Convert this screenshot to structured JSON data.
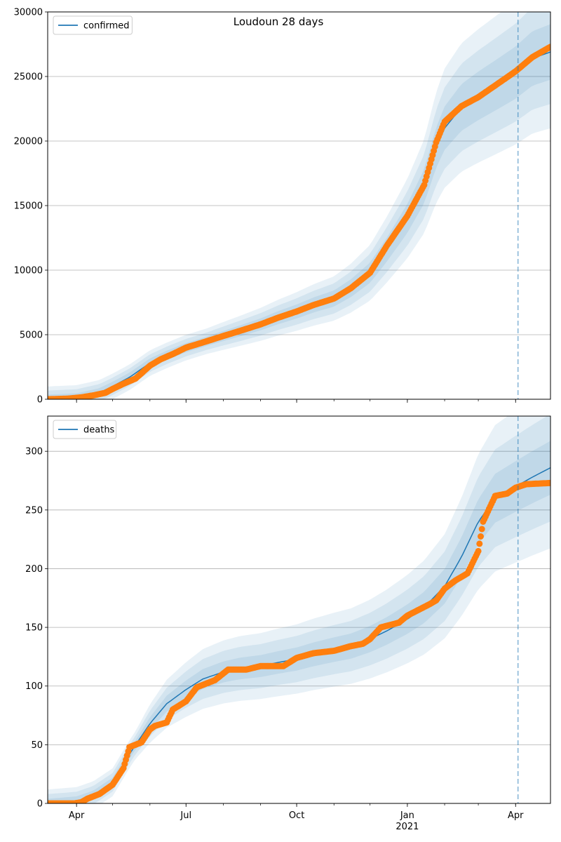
{
  "figure": {
    "title": "Loudoun 28 days"
  },
  "chart_data": [
    {
      "type": "line",
      "legend": {
        "entries": [
          "confirmed"
        ],
        "placement": "top-left"
      },
      "grid": "y-major",
      "x_axis": {
        "type": "date",
        "range": [
          "2020-03-08",
          "2021-04-30"
        ],
        "ticks": [
          {
            "date": "2020-04-01",
            "label": "Apr"
          },
          {
            "date": "2020-07-01",
            "label": "Jul"
          },
          {
            "date": "2020-10-01",
            "label": "Oct"
          },
          {
            "date": "2021-01-01",
            "label": "Jan",
            "sublabel": "2021"
          },
          {
            "date": "2021-04-01",
            "label": "Apr"
          }
        ]
      },
      "y_axis": {
        "range": [
          0,
          30000
        ],
        "ticks": [
          0,
          5000,
          10000,
          15000,
          20000,
          25000,
          30000
        ]
      },
      "forecast_start": "2021-04-03",
      "series": [
        {
          "name": "confirmed",
          "role": "model",
          "color": "#1f77b4",
          "points": [
            [
              "2020-03-08",
              0
            ],
            [
              "2020-04-01",
              100
            ],
            [
              "2020-04-20",
              500
            ],
            [
              "2020-05-01",
              1000
            ],
            [
              "2020-05-15",
              1700
            ],
            [
              "2020-06-01",
              2800
            ],
            [
              "2020-06-15",
              3400
            ],
            [
              "2020-07-01",
              4000
            ],
            [
              "2020-07-15",
              4400
            ],
            [
              "2020-08-01",
              4900
            ],
            [
              "2020-08-15",
              5300
            ],
            [
              "2020-09-01",
              5800
            ],
            [
              "2020-09-15",
              6300
            ],
            [
              "2020-10-01",
              6800
            ],
            [
              "2020-10-15",
              7300
            ],
            [
              "2020-11-01",
              7800
            ],
            [
              "2020-11-15",
              8600
            ],
            [
              "2020-12-01",
              9800
            ],
            [
              "2020-12-15",
              11600
            ],
            [
              "2021-01-01",
              14000
            ],
            [
              "2021-01-15",
              16500
            ],
            [
              "2021-01-25",
              19500
            ],
            [
              "2021-02-01",
              21000
            ],
            [
              "2021-02-15",
              22600
            ],
            [
              "2021-03-01",
              23500
            ],
            [
              "2021-03-15",
              24300
            ],
            [
              "2021-04-01",
              25300
            ],
            [
              "2021-04-15",
              26400
            ],
            [
              "2021-04-30",
              26900
            ]
          ],
          "band_widths": [
            0.08,
            0.15,
            0.22
          ]
        },
        {
          "name": "confirmed observed",
          "role": "observed",
          "color": "#ff7f0e",
          "points": [
            [
              "2020-03-08",
              0
            ],
            [
              "2020-03-25",
              50
            ],
            [
              "2020-04-05",
              150
            ],
            [
              "2020-04-15",
              300
            ],
            [
              "2020-04-25",
              500
            ],
            [
              "2020-05-01",
              800
            ],
            [
              "2020-05-10",
              1200
            ],
            [
              "2020-05-20",
              1600
            ],
            [
              "2020-06-01",
              2600
            ],
            [
              "2020-06-10",
              3100
            ],
            [
              "2020-06-20",
              3500
            ],
            [
              "2020-07-01",
              4000
            ],
            [
              "2020-07-15",
              4400
            ],
            [
              "2020-08-01",
              4900
            ],
            [
              "2020-08-15",
              5300
            ],
            [
              "2020-09-01",
              5800
            ],
            [
              "2020-09-15",
              6300
            ],
            [
              "2020-10-01",
              6800
            ],
            [
              "2020-10-15",
              7300
            ],
            [
              "2020-11-01",
              7800
            ],
            [
              "2020-11-15",
              8600
            ],
            [
              "2020-12-01",
              9800
            ],
            [
              "2020-12-15",
              11900
            ],
            [
              "2021-01-01",
              14200
            ],
            [
              "2021-01-15",
              16600
            ],
            [
              "2021-01-25",
              19900
            ],
            [
              "2021-02-01",
              21500
            ],
            [
              "2021-02-15",
              22700
            ],
            [
              "2021-03-01",
              23400
            ],
            [
              "2021-03-15",
              24300
            ],
            [
              "2021-04-01",
              25400
            ],
            [
              "2021-04-15",
              26500
            ],
            [
              "2021-04-30",
              27300
            ]
          ]
        }
      ]
    },
    {
      "type": "line",
      "legend": {
        "entries": [
          "deaths"
        ],
        "placement": "top-left"
      },
      "grid": "y-major",
      "x_axis": {
        "type": "date",
        "range": [
          "2020-03-08",
          "2021-04-30"
        ],
        "ticks": [
          {
            "date": "2020-04-01",
            "label": "Apr"
          },
          {
            "date": "2020-07-01",
            "label": "Jul"
          },
          {
            "date": "2020-10-01",
            "label": "Oct"
          },
          {
            "date": "2021-01-01",
            "label": "Jan",
            "sublabel": "2021"
          },
          {
            "date": "2021-04-01",
            "label": "Apr"
          }
        ]
      },
      "y_axis": {
        "range": [
          0,
          330
        ],
        "ticks": [
          0,
          50,
          100,
          150,
          200,
          250,
          300
        ]
      },
      "forecast_start": "2021-04-03",
      "series": [
        {
          "name": "deaths",
          "role": "model",
          "color": "#1f77b4",
          "points": [
            [
              "2020-03-08",
              0
            ],
            [
              "2020-04-01",
              2
            ],
            [
              "2020-04-15",
              7
            ],
            [
              "2020-05-01",
              18
            ],
            [
              "2020-05-15",
              42
            ],
            [
              "2020-06-01",
              68
            ],
            [
              "2020-06-15",
              85
            ],
            [
              "2020-07-01",
              97
            ],
            [
              "2020-07-15",
              106
            ],
            [
              "2020-08-01",
              112
            ],
            [
              "2020-08-15",
              115
            ],
            [
              "2020-09-01",
              117
            ],
            [
              "2020-09-15",
              120
            ],
            [
              "2020-10-01",
              123
            ],
            [
              "2020-10-15",
              127
            ],
            [
              "2020-11-01",
              131
            ],
            [
              "2020-11-15",
              134
            ],
            [
              "2020-12-01",
              140
            ],
            [
              "2020-12-15",
              147
            ],
            [
              "2021-01-01",
              157
            ],
            [
              "2021-01-15",
              167
            ],
            [
              "2021-02-01",
              185
            ],
            [
              "2021-02-15",
              210
            ],
            [
              "2021-03-01",
              240
            ],
            [
              "2021-03-15",
              260
            ],
            [
              "2021-04-01",
              270
            ],
            [
              "2021-04-15",
              278
            ],
            [
              "2021-04-30",
              286
            ]
          ],
          "band_widths": [
            0.08,
            0.16,
            0.24
          ]
        },
        {
          "name": "deaths observed",
          "role": "observed",
          "color": "#ff7f0e",
          "points": [
            [
              "2020-03-08",
              0
            ],
            [
              "2020-03-30",
              0
            ],
            [
              "2020-04-05",
              1
            ],
            [
              "2020-04-10",
              4
            ],
            [
              "2020-04-20",
              8
            ],
            [
              "2020-05-01",
              16
            ],
            [
              "2020-05-10",
              30
            ],
            [
              "2020-05-15",
              48
            ],
            [
              "2020-05-25",
              52
            ],
            [
              "2020-06-01",
              63
            ],
            [
              "2020-06-05",
              66
            ],
            [
              "2020-06-15",
              69
            ],
            [
              "2020-06-20",
              80
            ],
            [
              "2020-07-01",
              87
            ],
            [
              "2020-07-10",
              99
            ],
            [
              "2020-07-25",
              105
            ],
            [
              "2020-08-05",
              114
            ],
            [
              "2020-08-20",
              114
            ],
            [
              "2020-09-01",
              117
            ],
            [
              "2020-09-20",
              117
            ],
            [
              "2020-10-01",
              124
            ],
            [
              "2020-10-15",
              128
            ],
            [
              "2020-11-01",
              130
            ],
            [
              "2020-11-15",
              134
            ],
            [
              "2020-11-25",
              136
            ],
            [
              "2020-12-01",
              140
            ],
            [
              "2020-12-10",
              150
            ],
            [
              "2020-12-25",
              154
            ],
            [
              "2021-01-01",
              160
            ],
            [
              "2021-01-20",
              170
            ],
            [
              "2021-01-25",
              173
            ],
            [
              "2021-02-01",
              183
            ],
            [
              "2021-02-10",
              190
            ],
            [
              "2021-02-20",
              196
            ],
            [
              "2021-03-01",
              215
            ],
            [
              "2021-03-05",
              240
            ],
            [
              "2021-03-15",
              262
            ],
            [
              "2021-03-25",
              264
            ],
            [
              "2021-04-01",
              269
            ],
            [
              "2021-04-10",
              272
            ],
            [
              "2021-04-30",
              273
            ]
          ]
        }
      ]
    }
  ]
}
